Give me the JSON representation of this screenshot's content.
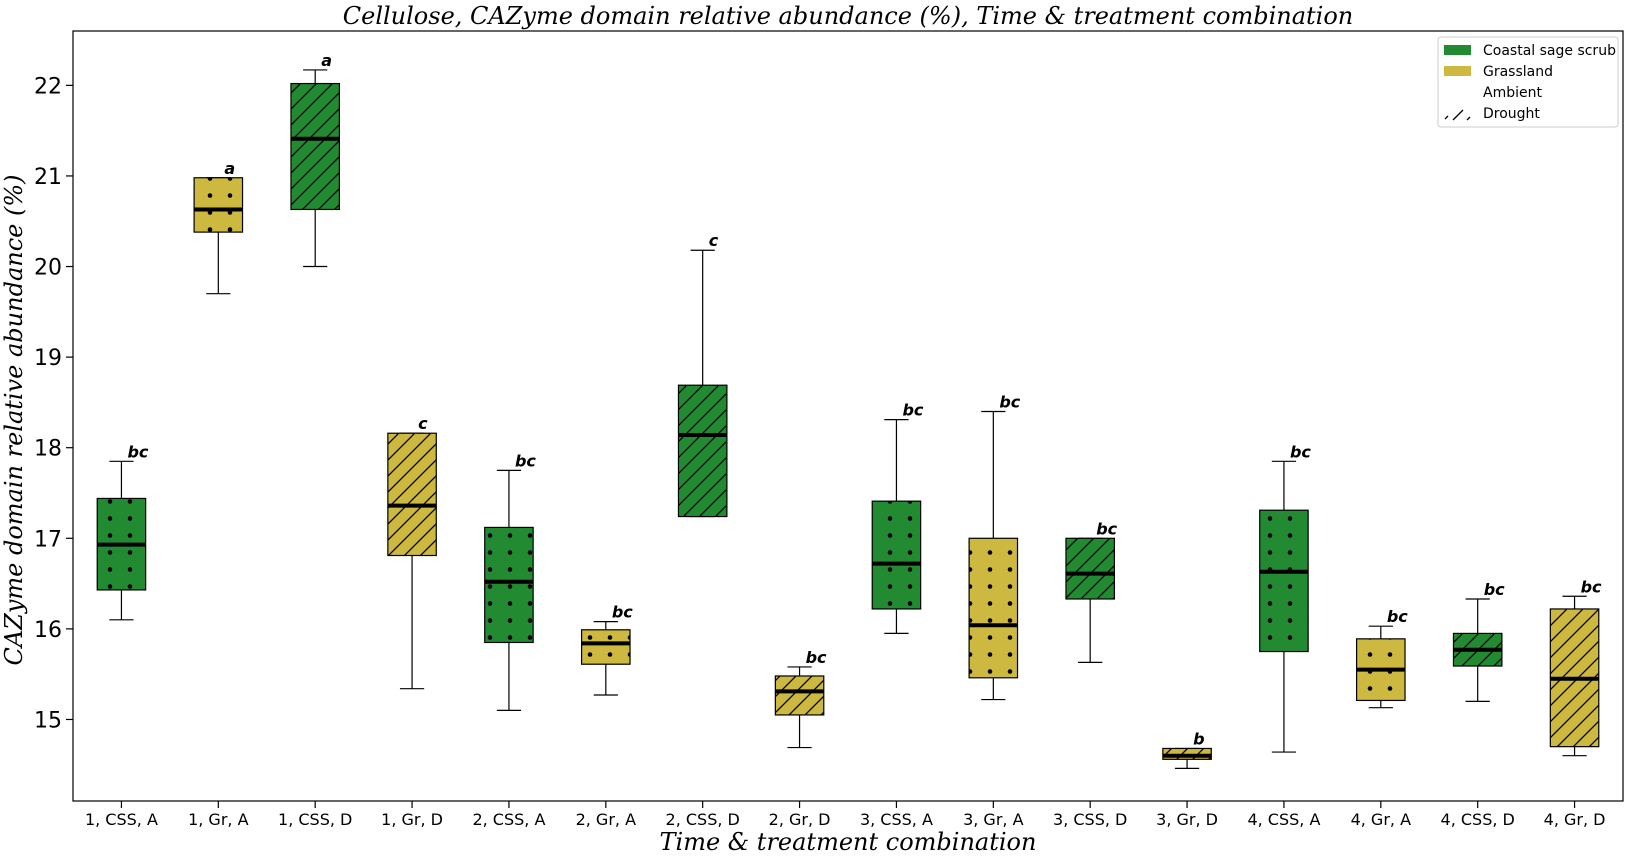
{
  "chart_data": {
    "type": "box",
    "title": "Cellulose, CAZyme domain relative abundance (%), Time & treatment combination",
    "xlabel": "Time & treatment combination",
    "ylabel": "CAZyme domain relative abundance (%)",
    "ylim": [
      14.1,
      22.6
    ],
    "yticks": [
      "15",
      "16",
      "17",
      "18",
      "19",
      "20",
      "21",
      "22"
    ],
    "grid": false,
    "legend_position": "top-right",
    "colors": {
      "Coastal sage scrub": "#228b32",
      "Grassland": "#cdb940"
    },
    "legend": [
      {
        "label": "Coastal sage scrub",
        "kind": "color",
        "color": "#228b32"
      },
      {
        "label": "Grassland",
        "kind": "color",
        "color": "#cdb940"
      },
      {
        "label": "Ambient",
        "kind": "pattern",
        "pattern": "dots"
      },
      {
        "label": "Drought",
        "kind": "pattern",
        "pattern": "hatch"
      }
    ],
    "categories": [
      "1, CSS, A",
      "1, Gr, A",
      "1, CSS, D",
      "1, Gr, D",
      "2, CSS, A",
      "2, Gr, A",
      "2, CSS, D",
      "2, Gr, D",
      "3, CSS, A",
      "3, Gr, A",
      "3, CSS, D",
      "3, Gr, D",
      "4, CSS, A",
      "4, Gr, A",
      "4, CSS, D",
      "4, Gr, D"
    ],
    "boxes": [
      {
        "label": "1, CSS, A",
        "vegetation": "Coastal sage scrub",
        "treatment": "Ambient",
        "whisker_low": 16.1,
        "q1": 16.43,
        "median": 16.93,
        "q3": 17.44,
        "whisker_high": 17.85,
        "significance": "bc"
      },
      {
        "label": "1, Gr, A",
        "vegetation": "Grassland",
        "treatment": "Ambient",
        "whisker_low": 19.7,
        "q1": 20.38,
        "median": 20.63,
        "q3": 20.98,
        "whisker_high": 20.98,
        "significance": "a"
      },
      {
        "label": "1, CSS, D",
        "vegetation": "Coastal sage scrub",
        "treatment": "Drought",
        "whisker_low": 20.0,
        "q1": 20.63,
        "median": 21.41,
        "q3": 22.02,
        "whisker_high": 22.17,
        "significance": "a"
      },
      {
        "label": "1, Gr, D",
        "vegetation": "Grassland",
        "treatment": "Drought",
        "whisker_low": 15.34,
        "q1": 16.81,
        "median": 17.36,
        "q3": 18.16,
        "whisker_high": 18.16,
        "significance": "c"
      },
      {
        "label": "2, CSS, A",
        "vegetation": "Coastal sage scrub",
        "treatment": "Ambient",
        "whisker_low": 15.1,
        "q1": 15.85,
        "median": 16.52,
        "q3": 17.12,
        "whisker_high": 17.75,
        "significance": "bc"
      },
      {
        "label": "2, Gr, A",
        "vegetation": "Grassland",
        "treatment": "Ambient",
        "whisker_low": 15.27,
        "q1": 15.61,
        "median": 15.84,
        "q3": 15.99,
        "whisker_high": 16.08,
        "significance": "bc"
      },
      {
        "label": "2, CSS, D",
        "vegetation": "Coastal sage scrub",
        "treatment": "Drought",
        "whisker_low": 17.24,
        "q1": 17.24,
        "median": 18.14,
        "q3": 18.69,
        "whisker_high": 20.18,
        "significance": "c"
      },
      {
        "label": "2, Gr, D",
        "vegetation": "Grassland",
        "treatment": "Drought",
        "whisker_low": 14.69,
        "q1": 15.05,
        "median": 15.31,
        "q3": 15.48,
        "whisker_high": 15.58,
        "significance": "bc"
      },
      {
        "label": "3, CSS, A",
        "vegetation": "Coastal sage scrub",
        "treatment": "Ambient",
        "whisker_low": 15.95,
        "q1": 16.22,
        "median": 16.72,
        "q3": 17.41,
        "whisker_high": 18.31,
        "significance": "bc"
      },
      {
        "label": "3, Gr, A",
        "vegetation": "Grassland",
        "treatment": "Ambient",
        "whisker_low": 15.22,
        "q1": 15.46,
        "median": 16.04,
        "q3": 17.0,
        "whisker_high": 18.4,
        "significance": "bc"
      },
      {
        "label": "3, CSS, D",
        "vegetation": "Coastal sage scrub",
        "treatment": "Drought",
        "whisker_low": 15.63,
        "q1": 16.33,
        "median": 16.61,
        "q3": 17.0,
        "whisker_high": 17.0,
        "significance": "bc"
      },
      {
        "label": "3, Gr, D",
        "vegetation": "Grassland",
        "treatment": "Drought",
        "whisker_low": 14.46,
        "q1": 14.56,
        "median": 14.6,
        "q3": 14.68,
        "whisker_high": 14.68,
        "significance": "b"
      },
      {
        "label": "4, CSS, A",
        "vegetation": "Coastal sage scrub",
        "treatment": "Ambient",
        "whisker_low": 14.64,
        "q1": 15.75,
        "median": 16.63,
        "q3": 17.31,
        "whisker_high": 17.85,
        "significance": "bc"
      },
      {
        "label": "4, Gr, A",
        "vegetation": "Grassland",
        "treatment": "Ambient",
        "whisker_low": 15.13,
        "q1": 15.21,
        "median": 15.55,
        "q3": 15.89,
        "whisker_high": 16.03,
        "significance": "bc"
      },
      {
        "label": "4, CSS, D",
        "vegetation": "Coastal sage scrub",
        "treatment": "Drought",
        "whisker_low": 15.2,
        "q1": 15.59,
        "median": 15.77,
        "q3": 15.95,
        "whisker_high": 16.33,
        "significance": "bc"
      },
      {
        "label": "4, Gr, D",
        "vegetation": "Grassland",
        "treatment": "Drought",
        "whisker_low": 14.6,
        "q1": 14.7,
        "median": 15.45,
        "q3": 16.22,
        "whisker_high": 16.36,
        "significance": "bc"
      }
    ]
  }
}
